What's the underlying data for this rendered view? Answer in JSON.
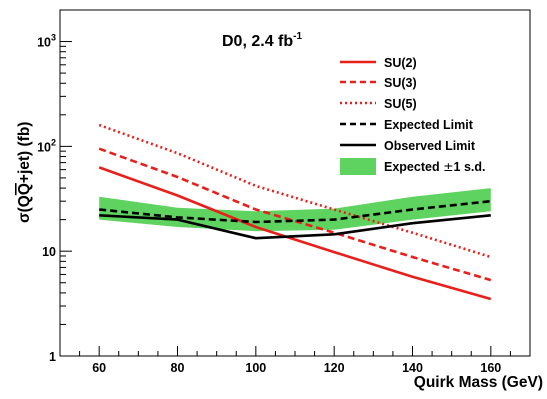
{
  "chart_data": {
    "type": "line",
    "annotation_prefix": "D0, 2.4 fb",
    "annotation_exponent": "-1",
    "xlabel": "Quirk Mass (GeV)",
    "ylabel_prefix": "σ(Q",
    "ylabel_qbar": "Q",
    "ylabel_suffix": "+jet) (fb)",
    "xlim": [
      50,
      170
    ],
    "ylim": [
      1,
      2000
    ],
    "yscale": "log",
    "x_ticks": [
      "60",
      "80",
      "100",
      "120",
      "140",
      "160"
    ],
    "y_ticks": [
      {
        "base": "1",
        "exp": ""
      },
      {
        "base": "10",
        "exp": ""
      },
      {
        "base": "10",
        "exp": "2"
      },
      {
        "base": "10",
        "exp": "3"
      }
    ],
    "legend_position": "top-right",
    "series": [
      {
        "name": "SU(2)",
        "style": "solid",
        "color": "#e8201c",
        "x": [
          60,
          80,
          100,
          120,
          140,
          160
        ],
        "y": [
          63,
          34,
          17,
          9.8,
          5.7,
          3.5
        ]
      },
      {
        "name": "SU(3)",
        "style": "dashed",
        "color": "#e8201c",
        "x": [
          60,
          80,
          100,
          120,
          140,
          160
        ],
        "y": [
          95,
          51,
          25,
          15,
          8.8,
          5.3
        ]
      },
      {
        "name": "SU(5)",
        "style": "dotted",
        "color": "#e8201c",
        "x": [
          60,
          80,
          100,
          120,
          140,
          160
        ],
        "y": [
          160,
          86,
          42,
          25,
          15,
          8.8
        ]
      },
      {
        "name": "Expected Limit",
        "style": "dashed",
        "color": "#000000",
        "x": [
          60,
          80,
          100,
          120,
          140,
          160
        ],
        "y": [
          25,
          21,
          19,
          20,
          25,
          30
        ]
      },
      {
        "name": "Observed Limit",
        "style": "solid",
        "color": "#000000",
        "x": [
          60,
          80,
          100,
          120,
          140,
          160
        ],
        "y": [
          22,
          20,
          13.3,
          14.5,
          18.5,
          22
        ]
      }
    ],
    "band": {
      "name_prefix": "Expected ",
      "name_symbol": "±",
      "name_suffix": "1 s.d.",
      "color": "#5fd35f",
      "x": [
        60,
        80,
        100,
        120,
        140,
        160
      ],
      "lower": [
        20,
        17,
        15.5,
        16,
        20,
        24
      ],
      "upper": [
        33,
        26,
        24,
        25.5,
        33,
        40
      ]
    }
  }
}
